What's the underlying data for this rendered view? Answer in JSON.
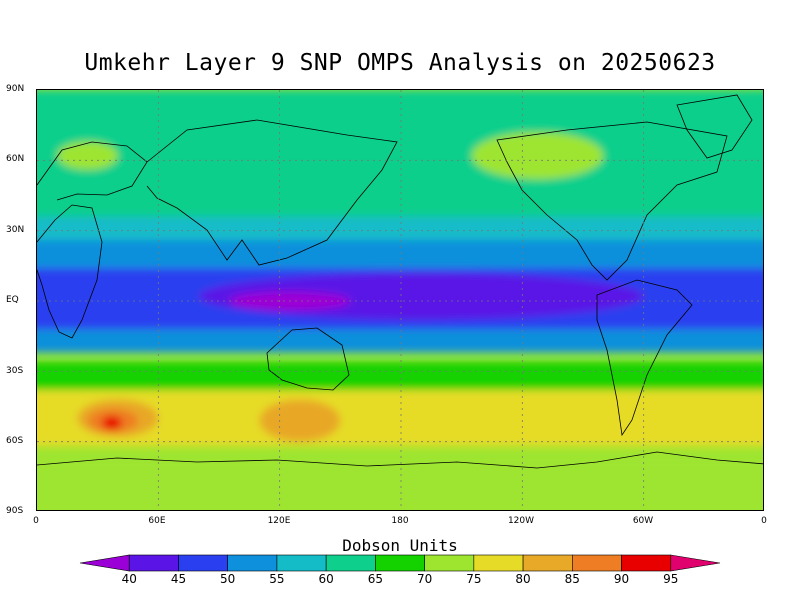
{
  "title": "Umkehr Layer 9 SNP OMPS Analysis on 20250623",
  "lat_labels": [
    "90N",
    "60N",
    "30N",
    "EQ",
    "30S",
    "60S",
    "90S"
  ],
  "lon_labels": [
    "0",
    "60E",
    "120E",
    "180",
    "120W",
    "60W",
    "0"
  ],
  "colorbar": {
    "title": "Dobson Units",
    "labels": [
      "40",
      "45",
      "50",
      "55",
      "60",
      "65",
      "70",
      "75",
      "80",
      "85",
      "90",
      "95"
    ],
    "colors": [
      "#9b00d6",
      "#5a14e6",
      "#2a40f0",
      "#0f90dc",
      "#14bcc8",
      "#0fcf8c",
      "#14d200",
      "#9ee530",
      "#e6dc28",
      "#e8a828",
      "#ee7d24",
      "#e80000",
      "#e0006e"
    ]
  },
  "map": {
    "background_color": "#9ee530",
    "regions": [
      {
        "level": 65,
        "color": "#0fcf8c",
        "lat": [
          90,
          56
        ],
        "lon": [
          0,
          360
        ]
      },
      {
        "level": 65,
        "color": "#0fcf8c",
        "lat": [
          60,
          26
        ],
        "lon": [
          0,
          360
        ]
      },
      {
        "level": 60,
        "color": "#14bcc8",
        "lat": [
          36,
          18
        ],
        "lon": [
          0,
          360
        ]
      },
      {
        "level": 55,
        "color": "#0f90dc",
        "lat": [
          26,
          -22
        ],
        "lon": [
          0,
          360
        ]
      },
      {
        "level": 50,
        "color": "#2a40f0",
        "lat": [
          14,
          -12
        ],
        "lon": [
          0,
          360
        ]
      },
      {
        "level": 45,
        "color": "#5a14e6",
        "lat": [
          12,
          -8
        ],
        "lon": [
          80,
          300
        ]
      },
      {
        "level": 40,
        "color": "#9b00d6",
        "lat": [
          4,
          -4
        ],
        "lon": [
          95,
          155
        ]
      },
      {
        "level": 70,
        "color": "#14d200",
        "lat": [
          -26,
          -38
        ],
        "lon": [
          0,
          360
        ]
      },
      {
        "level": 75,
        "color": "#9ee530",
        "lat": [
          68,
          56
        ],
        "lon": [
          10,
          40
        ]
      },
      {
        "level": 75,
        "color": "#9ee530",
        "lat": [
          72,
          52
        ],
        "lon": [
          215,
          280
        ]
      },
      {
        "level": 80,
        "color": "#e6dc28",
        "lat": [
          -38,
          -62
        ],
        "lon": [
          0,
          360
        ]
      },
      {
        "level": 85,
        "color": "#e8a828",
        "lat": [
          -42,
          -58
        ],
        "lon": [
          20,
          60
        ]
      },
      {
        "level": 85,
        "color": "#e8a828",
        "lat": [
          -42,
          -60
        ],
        "lon": [
          110,
          150
        ]
      },
      {
        "level": 90,
        "color": "#ee7d24",
        "lat": [
          -46,
          -56
        ],
        "lon": [
          25,
          50
        ]
      },
      {
        "level": 95,
        "color": "#e80000",
        "lat": [
          -49,
          -55
        ],
        "lon": [
          32,
          42
        ]
      },
      {
        "level": 75,
        "color": "#9ee530",
        "lat": [
          -66,
          -90
        ],
        "lon": [
          0,
          360
        ]
      }
    ]
  }
}
